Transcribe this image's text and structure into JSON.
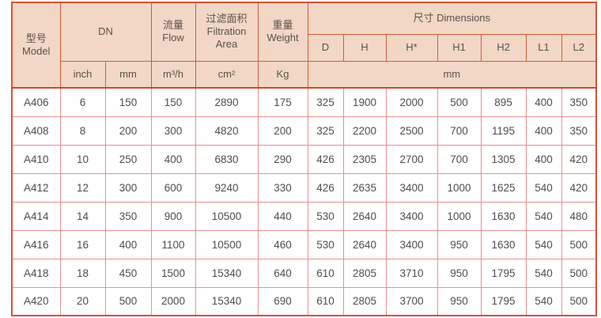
{
  "colors": {
    "header_bg": "#f2d7c6",
    "header_border": "#d45c35",
    "outer_border": "#d5523a",
    "strong_line": "#cd4a2c",
    "grid_pink": "#e9908d",
    "header_text": "#585349",
    "body_text": "#4d4d4d",
    "page_bg": "#ffffff"
  },
  "table": {
    "header": {
      "model_zh": "型号",
      "model_en": "Model",
      "dn_label": "DN",
      "flow_zh": "流量",
      "flow_en": "Flow",
      "filtration_zh": "过滤面积",
      "filtration_en_line1": "Filtration",
      "filtration_en_line2": "Area",
      "weight_zh": "重量",
      "weight_en": "Weight",
      "dimensions_label": "尺寸 Dimensions",
      "dim_cols": [
        "D",
        "H",
        "H*",
        "H1",
        "H2",
        "L1",
        "L2"
      ],
      "unit_inch": "inch",
      "unit_mm": "mm",
      "unit_flow": "m³/h",
      "unit_area": "cm²",
      "unit_weight": "Kg",
      "unit_dimensions": "mm"
    },
    "columns": [
      "Model",
      "inch",
      "mm",
      "m³/h",
      "cm²",
      "Kg",
      "D",
      "H",
      "H*",
      "H1",
      "H2",
      "L1",
      "L2"
    ],
    "rows": [
      [
        "A406",
        "6",
        "150",
        "150",
        "2890",
        "175",
        "325",
        "1900",
        "2000",
        "500",
        "895",
        "400",
        "350"
      ],
      [
        "A408",
        "8",
        "200",
        "300",
        "4820",
        "200",
        "325",
        "2200",
        "2500",
        "700",
        "1195",
        "400",
        "350"
      ],
      [
        "A410",
        "10",
        "250",
        "400",
        "6830",
        "290",
        "426",
        "2305",
        "2700",
        "700",
        "1305",
        "400",
        "420"
      ],
      [
        "A412",
        "12",
        "300",
        "600",
        "9240",
        "330",
        "426",
        "2635",
        "3400",
        "1000",
        "1625",
        "540",
        "420"
      ],
      [
        "A414",
        "14",
        "350",
        "900",
        "10500",
        "440",
        "530",
        "2640",
        "3400",
        "1000",
        "1630",
        "540",
        "480"
      ],
      [
        "A416",
        "16",
        "400",
        "1100",
        "10500",
        "460",
        "530",
        "2640",
        "3400",
        "950",
        "1630",
        "540",
        "500"
      ],
      [
        "A418",
        "18",
        "450",
        "1500",
        "15340",
        "640",
        "610",
        "2805",
        "3710",
        "950",
        "1795",
        "540",
        "500"
      ],
      [
        "A420",
        "20",
        "500",
        "2000",
        "15340",
        "690",
        "610",
        "2805",
        "3700",
        "950",
        "1795",
        "540",
        "500"
      ]
    ]
  }
}
